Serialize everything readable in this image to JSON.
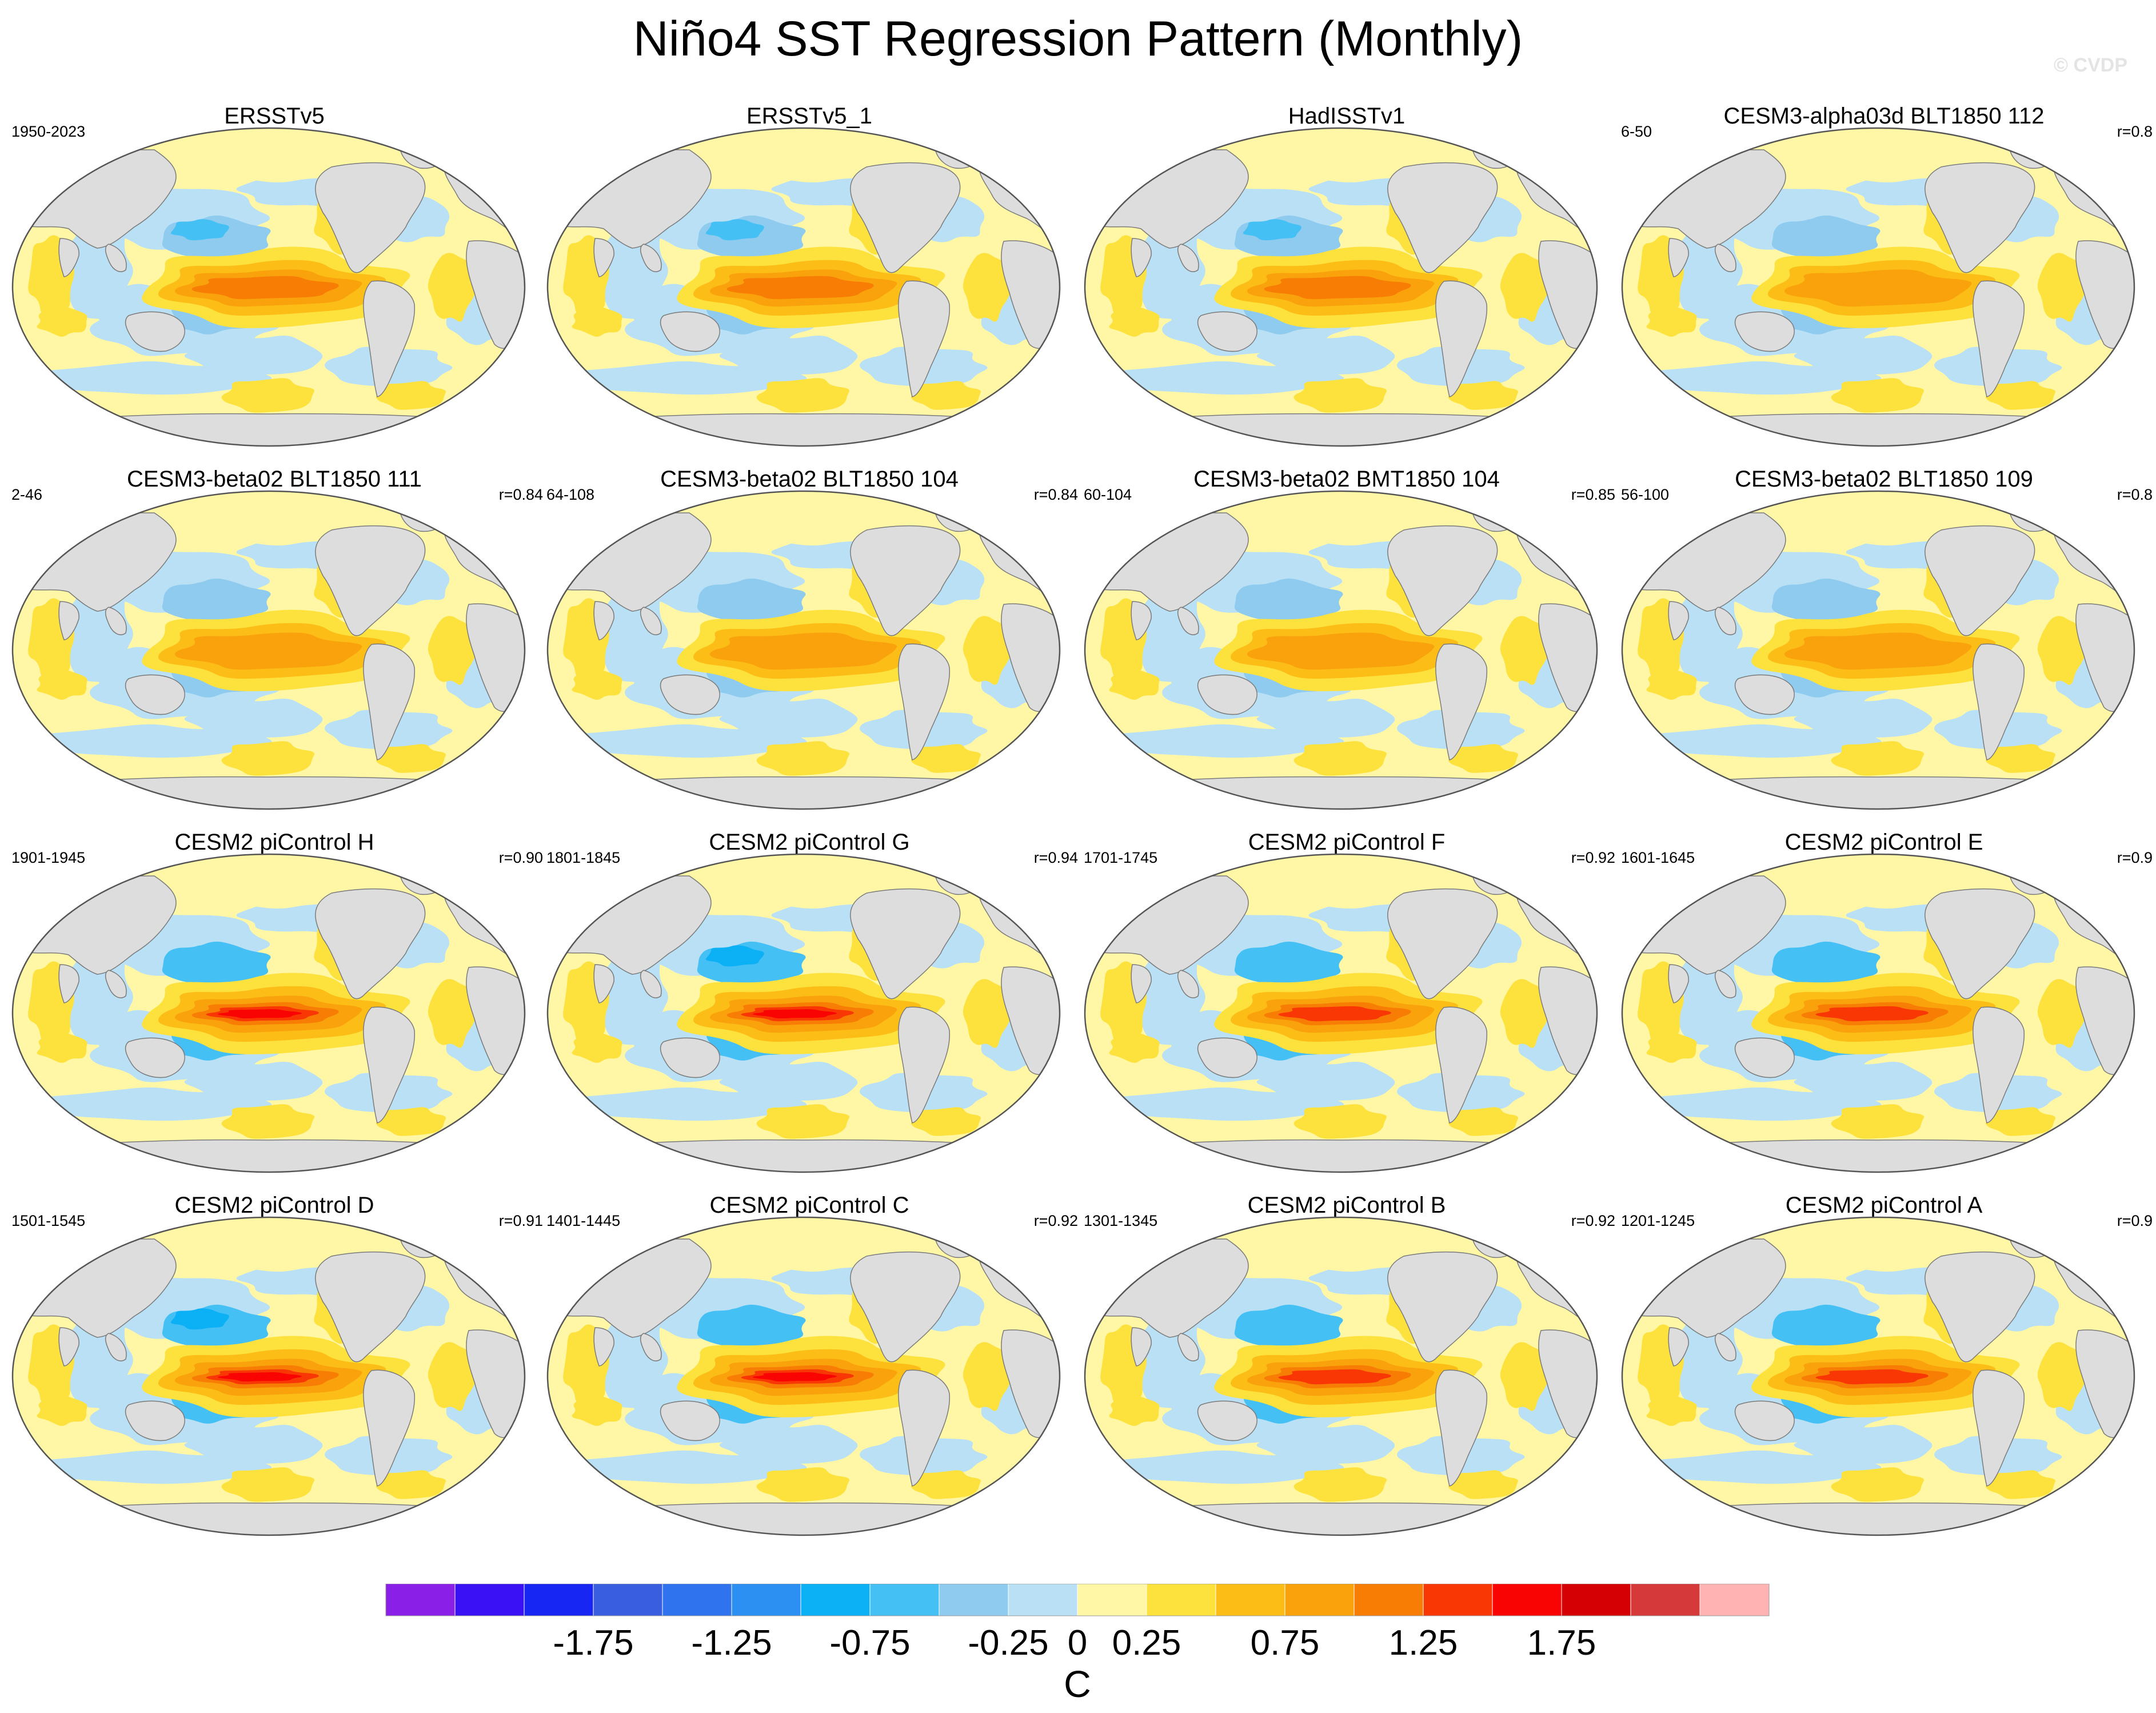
{
  "title": "Niño4 SST Regression Pattern (Monthly)",
  "watermark": "© CVDP",
  "chart_data": {
    "type": "heatmap",
    "description": "Regression of monthly SST anomalies onto the Niño4 index, global Robinson maps",
    "panels": [
      {
        "name": "ERSSTv5",
        "period": "1950-2023",
        "r": ""
      },
      {
        "name": "ERSSTv5_1",
        "period": "",
        "r": ""
      },
      {
        "name": "HadISSTv1",
        "period": "",
        "r": ""
      },
      {
        "name": "CESM3-alpha03d BLT1850 112",
        "period": "6-50",
        "r": "r=0.8"
      },
      {
        "name": "CESM3-beta02 BLT1850 111",
        "period": "2-46",
        "r": "r=0.84"
      },
      {
        "name": "CESM3-beta02 BLT1850 104",
        "period": "64-108",
        "r": "r=0.84"
      },
      {
        "name": "CESM3-beta02 BMT1850 104",
        "period": "60-104",
        "r": "r=0.85"
      },
      {
        "name": "CESM3-beta02 BLT1850 109",
        "period": "56-100",
        "r": "r=0.8"
      },
      {
        "name": "CESM2 piControl H",
        "period": "1901-1945",
        "r": "r=0.90"
      },
      {
        "name": "CESM2 piControl G",
        "period": "1801-1845",
        "r": "r=0.94"
      },
      {
        "name": "CESM2 piControl F",
        "period": "1701-1745",
        "r": "r=0.92"
      },
      {
        "name": "CESM2 piControl E",
        "period": "1601-1645",
        "r": "r=0.9"
      },
      {
        "name": "CESM2 piControl D",
        "period": "1501-1545",
        "r": "r=0.91"
      },
      {
        "name": "CESM2 piControl C",
        "period": "1401-1445",
        "r": "r=0.92"
      },
      {
        "name": "CESM2 piControl B",
        "period": "1301-1345",
        "r": "r=0.92"
      },
      {
        "name": "CESM2 piControl A",
        "period": "1201-1245",
        "r": "r=0.9"
      }
    ],
    "panel_peak_values": [
      1.05,
      1.05,
      1.15,
      0.95,
      0.8,
      0.8,
      0.85,
      0.85,
      1.5,
      1.6,
      1.45,
      1.4,
      1.55,
      1.5,
      1.45,
      1.4
    ],
    "colorbar": {
      "label": "C",
      "colors": [
        "#8a20e8",
        "#3a11f5",
        "#1726f2",
        "#3a5ee0",
        "#2f74ee",
        "#2b90f2",
        "#0bb0f5",
        "#45c0f5",
        "#8fcbef",
        "#b9e0f4",
        "#fff7a6",
        "#fde23d",
        "#fcbd17",
        "#f9a20c",
        "#f87d05",
        "#f83704",
        "#f90303",
        "#d40003",
        "#d6393a",
        "#ffb3b3"
      ],
      "tick_labels": [
        "-1.75",
        "-1.25",
        "-0.75",
        "-0.25",
        "0",
        "0.25",
        "0.75",
        "1.25",
        "1.75"
      ],
      "tick_positions": [
        3,
        5,
        7,
        9,
        10,
        11,
        13,
        15,
        17
      ]
    }
  }
}
